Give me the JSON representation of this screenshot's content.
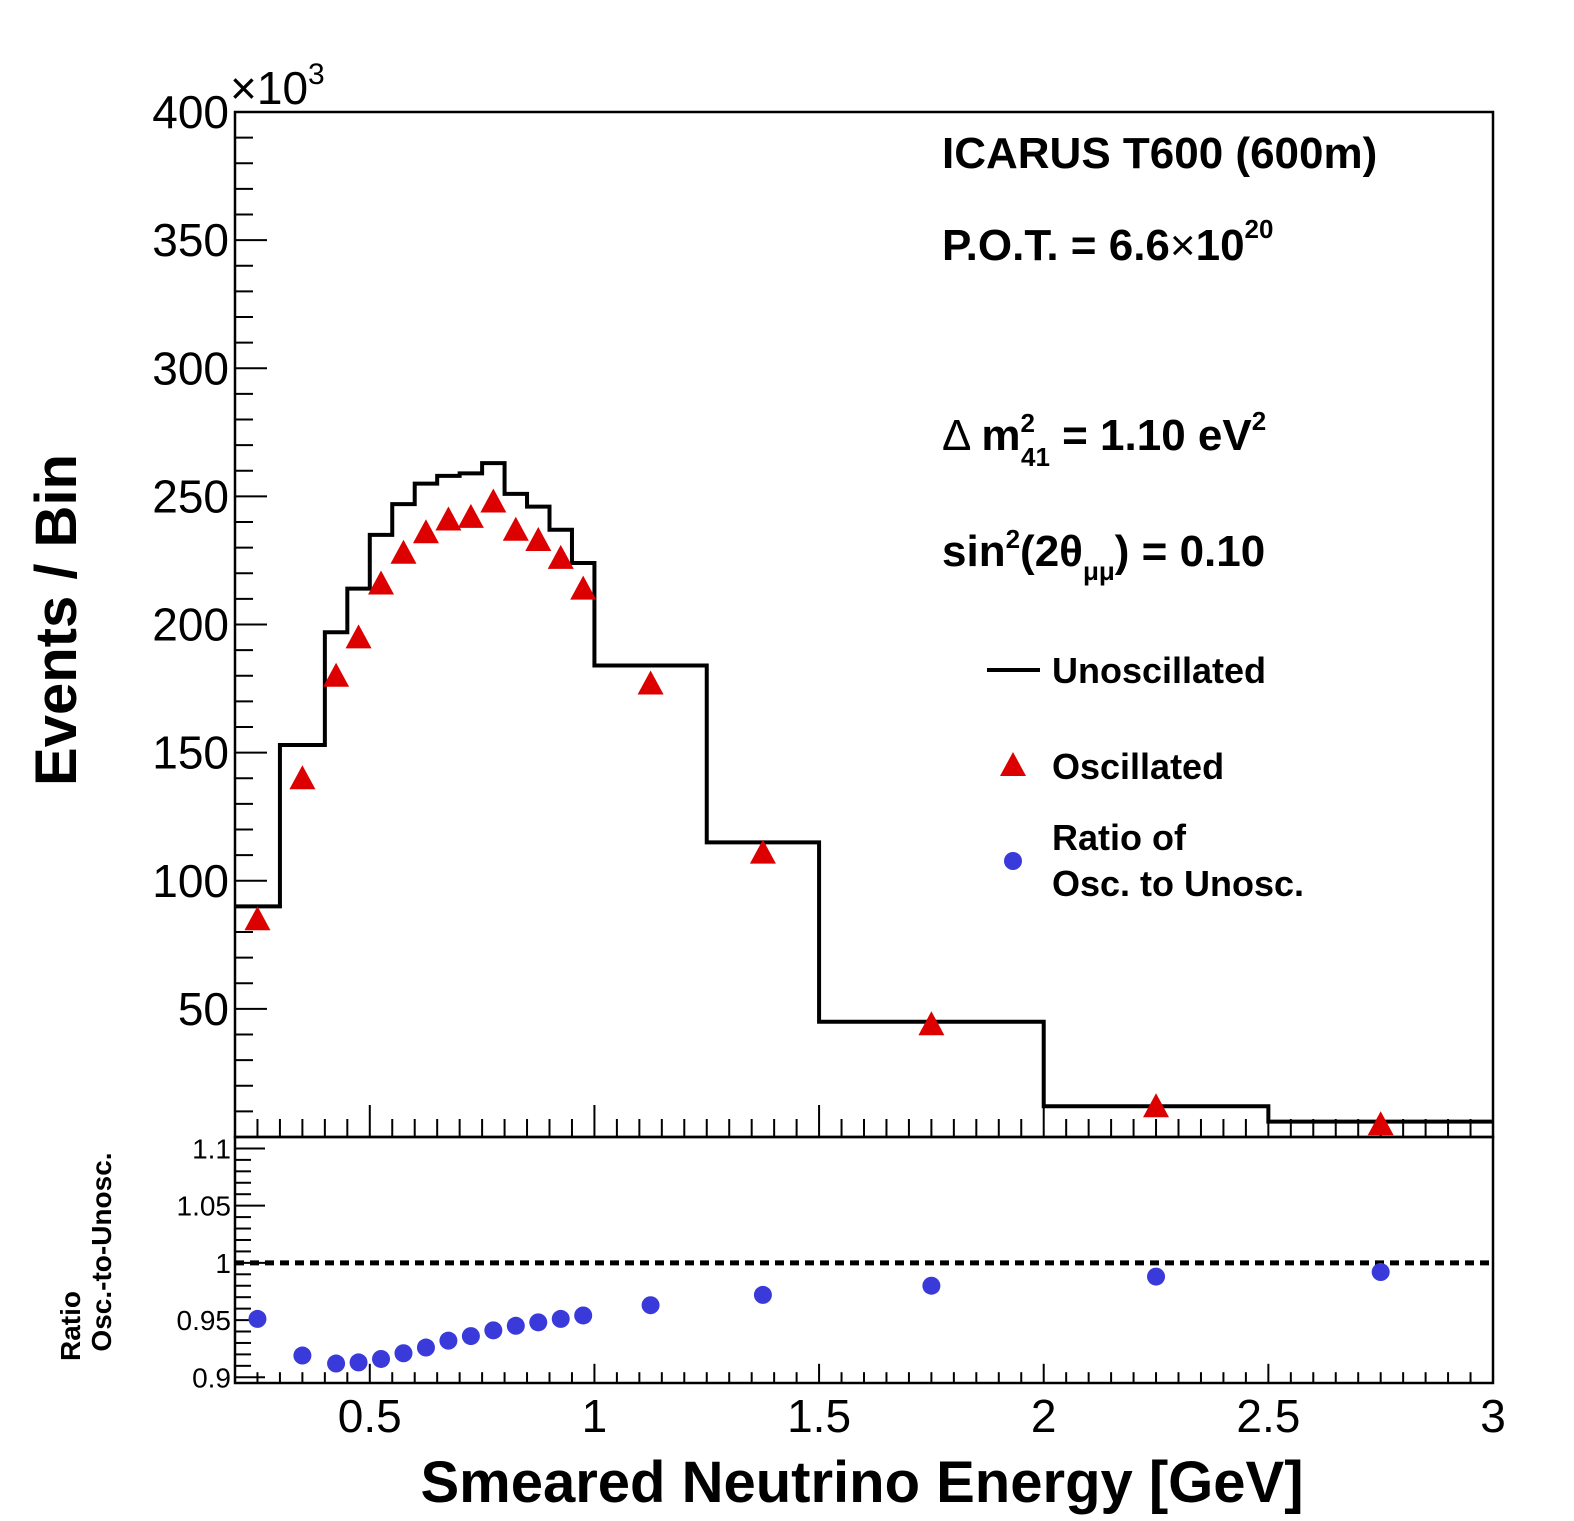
{
  "chart_data": [
    {
      "type": "bar",
      "panel": "top",
      "xlabel": "Smeared Neutrino Energy [GeV]",
      "ylabel": "Events / Bin",
      "y_multiplier": "×10",
      "y_multiplier_exp": "3",
      "xlim": [
        0.2,
        3.0
      ],
      "ylim": [
        0,
        400
      ],
      "y_ticks": [
        "50",
        "100",
        "150",
        "200",
        "250",
        "300",
        "350",
        "400"
      ],
      "x_ticks": [
        "0.5",
        "1",
        "1.5",
        "2",
        "2.5",
        "3"
      ],
      "bin_edges": [
        0.2,
        0.3,
        0.4,
        0.45,
        0.5,
        0.55,
        0.6,
        0.65,
        0.7,
        0.75,
        0.8,
        0.85,
        0.9,
        0.95,
        1.0,
        1.25,
        1.5,
        2.0,
        2.5,
        3.0
      ],
      "series": [
        {
          "name": "Unoscillated",
          "style": "step",
          "color": "#000000",
          "values": [
            90,
            153,
            197,
            214,
            235,
            247,
            255,
            258,
            259,
            263,
            251,
            246,
            237,
            224,
            184,
            115,
            45,
            12,
            6
          ]
        },
        {
          "name": "Oscillated",
          "style": "triangle",
          "color": "#dd0000",
          "x": [
            0.25,
            0.35,
            0.425,
            0.475,
            0.525,
            0.575,
            0.625,
            0.675,
            0.725,
            0.775,
            0.825,
            0.875,
            0.925,
            0.975,
            1.125,
            1.375,
            1.75,
            2.25,
            2.75
          ],
          "values": [
            85,
            140,
            180,
            195,
            216,
            228,
            236,
            241,
            242,
            248,
            237,
            233,
            226,
            214,
            177,
            111,
            44,
            12,
            5
          ]
        }
      ],
      "annotations": {
        "experiment": "ICARUS T600 (600m)",
        "pot_prefix": "P.O.T. = 6.6",
        "pot_times": "×",
        "pot_base": "10",
        "pot_exp": "20",
        "dm_delta": "Δ",
        "dm_m": "m",
        "dm_sup": "2",
        "dm_sub": "41",
        "dm_value": " = 1.10 eV",
        "dm_unit_sup": "2",
        "sin_prefix": "sin",
        "sin_sup": "2",
        "sin_mid": "(2θ",
        "sin_sub": "μμ",
        "sin_value": ") = 0.10"
      },
      "legend": {
        "placement": "right",
        "unosc": "Unoscillated",
        "osc": "Oscillated",
        "ratio_line1": "Ratio of",
        "ratio_line2": "Osc. to Unosc."
      }
    },
    {
      "type": "scatter",
      "panel": "bottom",
      "ylabel_line1": "Ratio",
      "ylabel_line2": "Osc.-to-Unosc.",
      "xlim": [
        0.2,
        3.0
      ],
      "ylim": [
        0.895,
        1.11
      ],
      "y_ticks": [
        "0.9",
        "0.95",
        "1",
        "1.05",
        "1.1"
      ],
      "reference_line": 1.0,
      "series": [
        {
          "name": "Ratio of Osc. to Unosc.",
          "color": "#3a3adb",
          "x": [
            0.25,
            0.35,
            0.425,
            0.475,
            0.525,
            0.575,
            0.625,
            0.675,
            0.725,
            0.775,
            0.825,
            0.875,
            0.925,
            0.975,
            1.125,
            1.375,
            1.75,
            2.25,
            2.75
          ],
          "values": [
            0.951,
            0.919,
            0.912,
            0.913,
            0.916,
            0.921,
            0.926,
            0.932,
            0.936,
            0.941,
            0.945,
            0.948,
            0.951,
            0.954,
            0.963,
            0.972,
            0.98,
            0.988,
            0.992
          ]
        }
      ]
    }
  ]
}
